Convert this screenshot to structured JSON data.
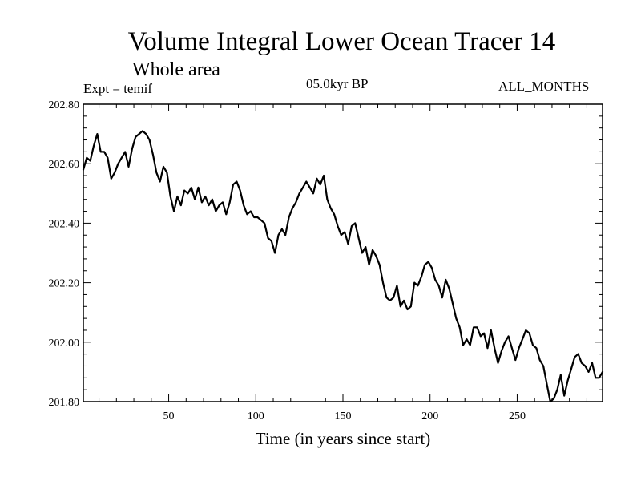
{
  "header": {
    "title": "Volume Integral Lower Ocean Tracer 14",
    "subtitle": "Whole area",
    "experiment": "Expt = temif",
    "period": "05.0kyr BP",
    "months": "ALL_MONTHS"
  },
  "chart_data": {
    "type": "line",
    "title": "Volume Integral Lower Ocean Tracer 14",
    "subtitle": "Whole area",
    "xlabel": "Time (in years since start)",
    "ylabel": "",
    "xlim": [
      1,
      299
    ],
    "ylim": [
      201.8,
      202.8
    ],
    "xticks": [
      50,
      100,
      150,
      200,
      250
    ],
    "xtick_labels": [
      "50",
      "100",
      "150",
      "200",
      "250"
    ],
    "yticks": [
      201.8,
      202.0,
      202.2,
      202.4,
      202.6,
      202.8
    ],
    "ytick_labels": [
      "201.80",
      "202.00",
      "202.20",
      "202.40",
      "202.60",
      "202.80"
    ],
    "grid": false,
    "series": [
      {
        "name": "Tracer 14",
        "color": "#000000",
        "x": [
          1,
          3,
          5,
          7,
          9,
          11,
          13,
          15,
          17,
          19,
          21,
          23,
          25,
          27,
          29,
          31,
          33,
          35,
          37,
          39,
          41,
          43,
          45,
          47,
          49,
          51,
          53,
          55,
          57,
          59,
          61,
          63,
          65,
          67,
          69,
          71,
          73,
          75,
          77,
          79,
          81,
          83,
          85,
          87,
          89,
          91,
          93,
          95,
          97,
          99,
          101,
          103,
          105,
          107,
          109,
          111,
          113,
          115,
          117,
          119,
          121,
          123,
          125,
          127,
          129,
          131,
          133,
          135,
          137,
          139,
          141,
          143,
          145,
          147,
          149,
          151,
          153,
          155,
          157,
          159,
          161,
          163,
          165,
          167,
          169,
          171,
          173,
          175,
          177,
          179,
          181,
          183,
          185,
          187,
          189,
          191,
          193,
          195,
          197,
          199,
          201,
          203,
          205,
          207,
          209,
          211,
          213,
          215,
          217,
          219,
          221,
          223,
          225,
          227,
          229,
          231,
          233,
          235,
          237,
          239,
          241,
          243,
          245,
          247,
          249,
          251,
          253,
          255,
          257,
          259,
          261,
          263,
          265,
          267,
          269,
          271,
          273,
          275,
          277,
          279,
          281,
          283,
          285,
          287,
          289,
          291,
          293,
          295,
          297,
          299
        ],
        "y": [
          202.58,
          202.62,
          202.61,
          202.66,
          202.7,
          202.64,
          202.64,
          202.62,
          202.55,
          202.57,
          202.6,
          202.62,
          202.64,
          202.59,
          202.65,
          202.69,
          202.7,
          202.71,
          202.7,
          202.68,
          202.63,
          202.57,
          202.54,
          202.59,
          202.57,
          202.49,
          202.44,
          202.49,
          202.46,
          202.51,
          202.5,
          202.52,
          202.48,
          202.52,
          202.47,
          202.49,
          202.46,
          202.48,
          202.44,
          202.46,
          202.47,
          202.43,
          202.47,
          202.53,
          202.54,
          202.51,
          202.46,
          202.43,
          202.44,
          202.42,
          202.42,
          202.41,
          202.4,
          202.35,
          202.34,
          202.3,
          202.36,
          202.38,
          202.36,
          202.42,
          202.45,
          202.47,
          202.5,
          202.52,
          202.54,
          202.52,
          202.5,
          202.55,
          202.53,
          202.56,
          202.48,
          202.45,
          202.43,
          202.39,
          202.36,
          202.37,
          202.33,
          202.39,
          202.4,
          202.35,
          202.3,
          202.32,
          202.26,
          202.31,
          202.29,
          202.26,
          202.2,
          202.15,
          202.14,
          202.15,
          202.19,
          202.12,
          202.14,
          202.11,
          202.12,
          202.2,
          202.19,
          202.22,
          202.26,
          202.27,
          202.25,
          202.21,
          202.19,
          202.15,
          202.21,
          202.18,
          202.13,
          202.08,
          202.05,
          201.99,
          202.01,
          201.99,
          202.05,
          202.05,
          202.02,
          202.03,
          201.98,
          202.04,
          201.98,
          201.93,
          201.97,
          202.0,
          202.02,
          201.98,
          201.94,
          201.98,
          202.01,
          202.04,
          202.03,
          201.99,
          201.98,
          201.94,
          201.92,
          201.86,
          201.8,
          201.81,
          201.84,
          201.89,
          201.82,
          201.87,
          201.91,
          201.95,
          201.96,
          201.93,
          201.92,
          201.9,
          201.93,
          201.88,
          201.88,
          201.9
        ]
      }
    ]
  }
}
